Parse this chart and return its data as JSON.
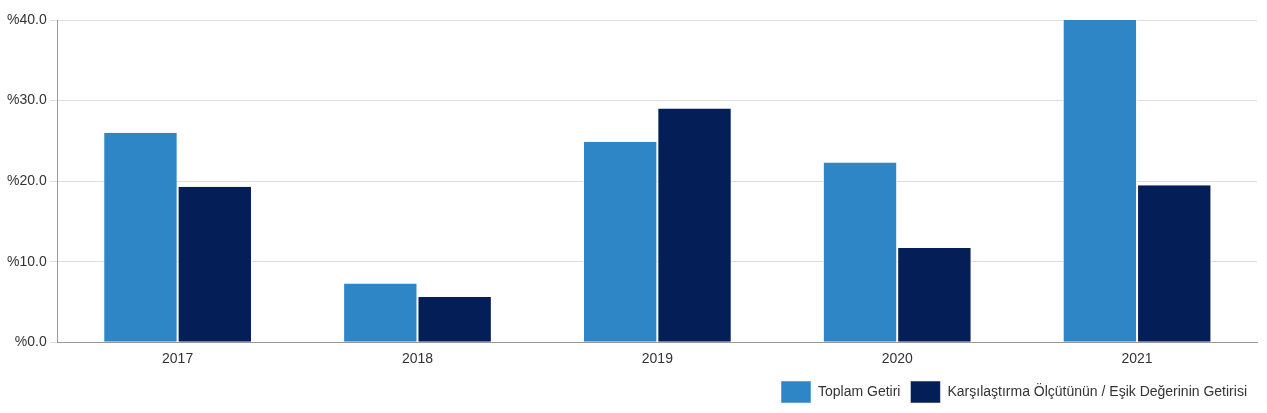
{
  "chart_data": {
    "type": "bar",
    "categories": [
      "2017",
      "2018",
      "2019",
      "2020",
      "2021"
    ],
    "series": [
      {
        "name": "Toplam Getiri",
        "color": "#2e86c6",
        "values": [
          26.0,
          7.3,
          24.9,
          22.3,
          40.0
        ]
      },
      {
        "name": "Karşılaştırma Ölçütünün / Eşik Değerinin Getirisi",
        "color": "#041e58",
        "values": [
          19.3,
          5.6,
          29.0,
          11.7,
          19.5
        ]
      }
    ],
    "ylim": [
      0,
      40
    ],
    "yticks": [
      {
        "value": 0,
        "label": "%0.0"
      },
      {
        "value": 10,
        "label": "%10.0"
      },
      {
        "value": 20,
        "label": "%20.0"
      },
      {
        "value": 30,
        "label": "%30.0"
      },
      {
        "value": 40,
        "label": "%40.0"
      }
    ],
    "grid": "y",
    "legend": "bottom right"
  }
}
